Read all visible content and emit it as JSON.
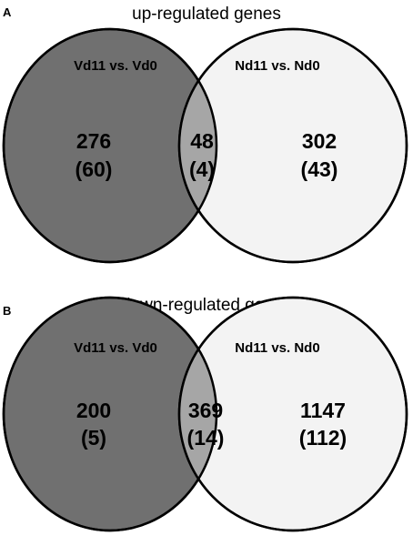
{
  "figure": {
    "colors": {
      "left_only": "#707070",
      "overlap": "#a6a6a6",
      "right_only": "#f3f3f3",
      "outline": "#000000"
    },
    "panels": [
      {
        "label": "A",
        "title": "up-regulated genes",
        "left_set": "Vd11 vs. Vd0",
        "right_set": "Nd11 vs. Nd0",
        "regions": {
          "left_only": {
            "count": "276",
            "sub": "(60)"
          },
          "overlap": {
            "count": "48",
            "sub": "(4)"
          },
          "right_only": {
            "count": "302",
            "sub": "(43)"
          }
        }
      },
      {
        "label": "B",
        "title": "down-regulated genes",
        "left_set": "Vd11 vs. Vd0",
        "right_set": "Nd11 vs. Nd0",
        "regions": {
          "left_only": {
            "count": "200",
            "sub": "(5)"
          },
          "overlap": {
            "count": "369",
            "sub": "(14)"
          },
          "right_only": {
            "count": "1147",
            "sub": "(112)"
          }
        }
      }
    ]
  }
}
